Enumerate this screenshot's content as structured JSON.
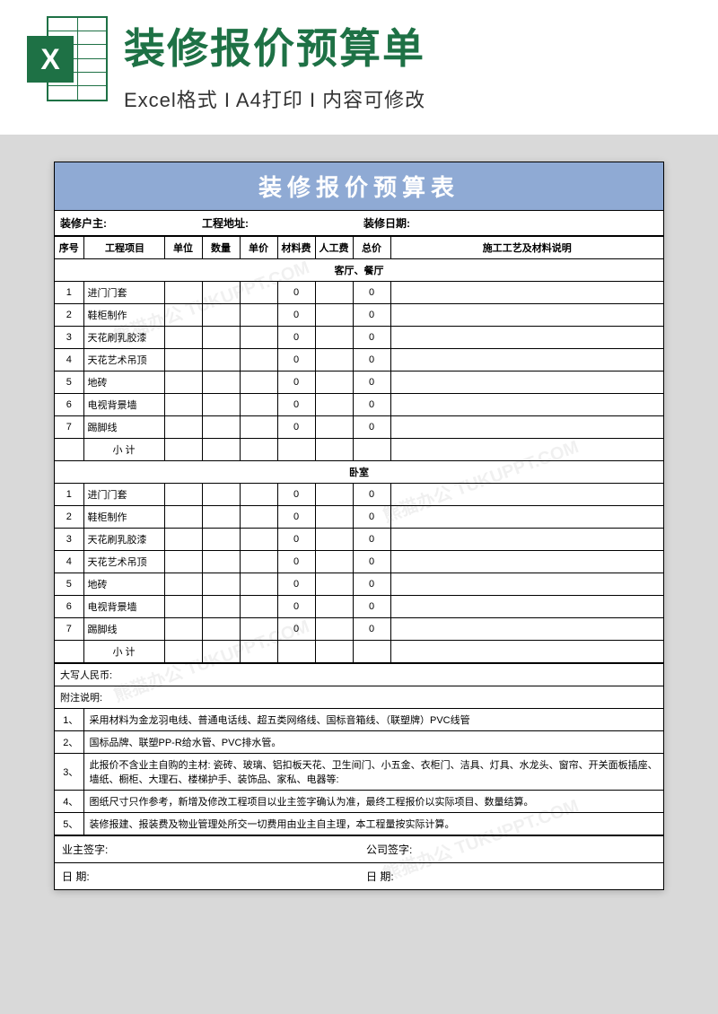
{
  "header": {
    "badge": "X",
    "title": "装修报价预算单",
    "subtitle": "Excel格式 I A4打印 I 内容可修改"
  },
  "sheet": {
    "title": "装修报价预算表",
    "info": {
      "owner": "装修户主:",
      "address": "工程地址:",
      "date": "装修日期:"
    },
    "columns": {
      "seq": "序号",
      "item": "工程项目",
      "unit": "单位",
      "qty": "数量",
      "price": "单价",
      "material": "材料费",
      "labor": "人工费",
      "total": "总价",
      "desc": "施工工艺及材料说明"
    },
    "sections": [
      {
        "name": "客厅、餐厅",
        "rows": [
          {
            "n": "1",
            "item": "进门门套",
            "mat": "0",
            "tot": "0"
          },
          {
            "n": "2",
            "item": "鞋柜制作",
            "mat": "0",
            "tot": "0"
          },
          {
            "n": "3",
            "item": "天花刷乳胶漆",
            "mat": "0",
            "tot": "0"
          },
          {
            "n": "4",
            "item": "天花艺术吊顶",
            "mat": "0",
            "tot": "0"
          },
          {
            "n": "5",
            "item": "地砖",
            "mat": "0",
            "tot": "0"
          },
          {
            "n": "6",
            "item": "电视背景墙",
            "mat": "0",
            "tot": "0"
          },
          {
            "n": "7",
            "item": "踢脚线",
            "mat": "0",
            "tot": "0"
          }
        ],
        "subtotal": "小  计"
      },
      {
        "name": "卧室",
        "rows": [
          {
            "n": "1",
            "item": "进门门套",
            "mat": "0",
            "tot": "0"
          },
          {
            "n": "2",
            "item": "鞋柜制作",
            "mat": "0",
            "tot": "0"
          },
          {
            "n": "3",
            "item": "天花刷乳胶漆",
            "mat": "0",
            "tot": "0"
          },
          {
            "n": "4",
            "item": "天花艺术吊顶",
            "mat": "0",
            "tot": "0"
          },
          {
            "n": "5",
            "item": "地砖",
            "mat": "0",
            "tot": "0"
          },
          {
            "n": "6",
            "item": "电视背景墙",
            "mat": "0",
            "tot": "0"
          },
          {
            "n": "7",
            "item": "踢脚线",
            "mat": "0",
            "tot": "0"
          }
        ],
        "subtotal": "小  计"
      }
    ],
    "rmb": "大写人民币:",
    "notesHeader": "附注说明:",
    "notes": [
      {
        "n": "1、",
        "t": "采用材料为金龙羽电线、普通电话线、超五类网络线、国标音箱线、（联塑牌）PVC线管"
      },
      {
        "n": "2、",
        "t": "国标品牌、联塑PP-R给水管、PVC排水管。"
      },
      {
        "n": "3、",
        "t": "此报价不含业主自购的主材: 瓷砖、玻璃、铝扣板天花、卫生间门、小五金、衣柜门、洁具、灯具、水龙头、窗帘、开关面板插座、墙纸、橱柜、大理石、楼梯护手、装饰品、家私、电器等:"
      },
      {
        "n": "4、",
        "t": "图纸尺寸只作参考，新增及修改工程项目以业主签字确认为准，最终工程报价以实际项目、数量结算。"
      },
      {
        "n": "5、",
        "t": "装修报建、报装费及物业管理处所交一切费用由业主自主理，本工程量按实际计算。"
      }
    ],
    "sig": {
      "owner": "业主签字:",
      "company": "公司签字:",
      "date1": "日  期:",
      "date2": "日  期:"
    }
  },
  "colors": {
    "accent": "#1e7145",
    "tableHeader": "#8faad4"
  }
}
